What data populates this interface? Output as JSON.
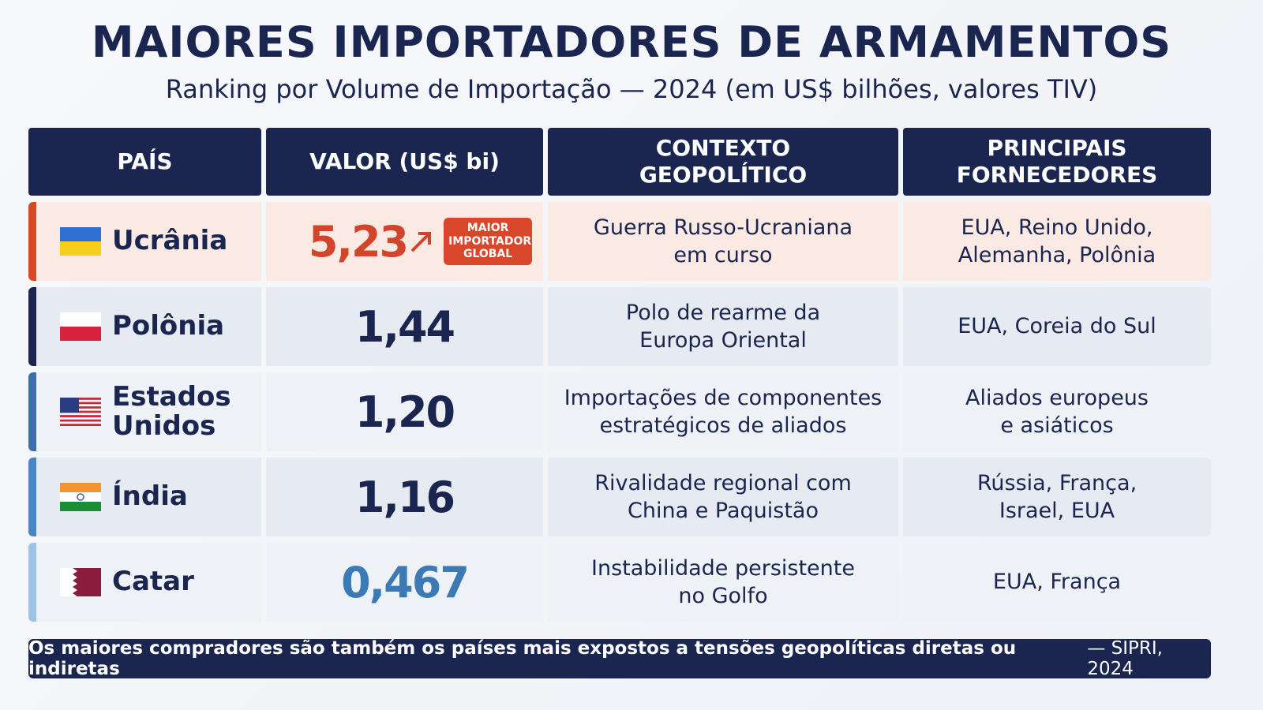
{
  "header": {
    "title": "MAIORES IMPORTADORES DE ARMAMENTOS",
    "subtitle": "Ranking por Volume de Importação — 2024 (em US$ bilhões, valores TIV)"
  },
  "table": {
    "columns": [
      "PAÍS",
      "VALOR (US$ bi)",
      "CONTEXTO GEOPOLÍTICO",
      "PRINCIPAIS FORNECEDORES"
    ],
    "rows": [
      {
        "country": "Ucrânia",
        "value": "5,23",
        "badge": "MAIOR IMPORTADOR GLOBAL",
        "context": [
          "Guerra Russo-Ucraniana",
          "em curso"
        ],
        "suppliers": [
          "EUA, Reino Unido,",
          "Alemanha, Polônia"
        ]
      },
      {
        "country": "Polônia",
        "value": "1,44",
        "context": [
          "Polo de rearme da",
          "Europa Oriental"
        ],
        "suppliers": [
          "EUA, Coreia do Sul"
        ]
      },
      {
        "country": "Estados Unidos",
        "value": "1,20",
        "context": [
          "Importações de componentes",
          "estratégicos de aliados"
        ],
        "suppliers": [
          "Aliados europeus",
          "e asiáticos"
        ]
      },
      {
        "country": "Índia",
        "value": "1,16",
        "context": [
          "Rivalidade regional com",
          "China e Paquistão"
        ],
        "suppliers": [
          "Rússia, França,",
          "Israel, EUA"
        ]
      },
      {
        "country": "Catar",
        "value": "0,467",
        "context": [
          "Instabilidade persistente",
          "no Golfo"
        ],
        "suppliers": [
          "EUA, França"
        ]
      }
    ]
  },
  "footer": {
    "text": "Os maiores compradores são também os países mais expostos a tensões geopolíticas diretas ou indiretas",
    "source": "— SIPRI, 2024"
  }
}
